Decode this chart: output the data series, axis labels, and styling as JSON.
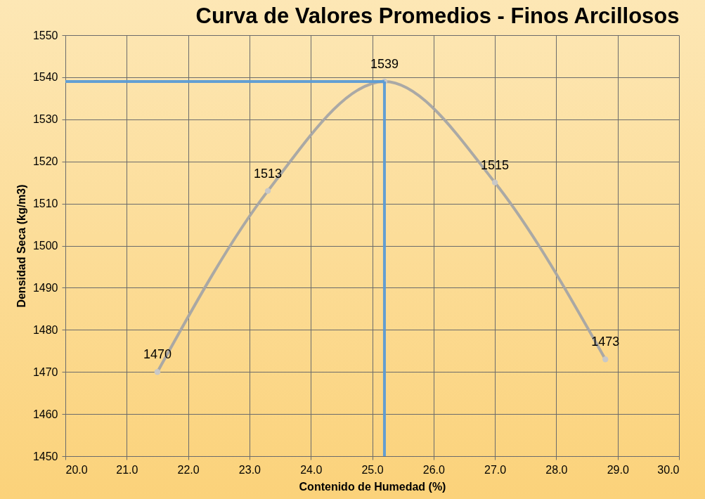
{
  "chart_data": {
    "type": "line",
    "title": "Curva de Valores Promedios - Finos Arcillosos",
    "xlabel": "Contenido de Humedad (%)",
    "ylabel": "Densidad Seca (kg/m3)",
    "x": [
      21.5,
      23.3,
      25.2,
      27.0,
      28.8
    ],
    "series": [
      {
        "color": "#a5a5a5",
        "values": [
          1470,
          1513,
          1539,
          1515,
          1473
        ],
        "marker": "circle",
        "data_labels": true
      }
    ],
    "ref_lines": [
      {
        "axis": "x",
        "value": 25.2,
        "color": "#5b9bd5"
      },
      {
        "axis": "y",
        "value": 1539,
        "color": "#5b9bd5"
      }
    ],
    "xlim": [
      20,
      30
    ],
    "xticks": [
      {
        "value": 20,
        "label": "20.0"
      },
      {
        "value": 21,
        "label": "21.0"
      },
      {
        "value": 22,
        "label": "22.0"
      },
      {
        "value": 23,
        "label": "23.0"
      },
      {
        "value": 24,
        "label": "24.0"
      },
      {
        "value": 25,
        "label": "25.0"
      },
      {
        "value": 26,
        "label": "26.0"
      },
      {
        "value": 27,
        "label": "27.0"
      },
      {
        "value": 28,
        "label": "28.0"
      },
      {
        "value": 29,
        "label": "29.0"
      },
      {
        "value": 30,
        "label": "30.0"
      }
    ],
    "ylim": [
      1450,
      1550
    ],
    "yticks": [
      1450,
      1460,
      1470,
      1480,
      1490,
      1500,
      1510,
      1520,
      1530,
      1540,
      1550
    ],
    "grid": true
  }
}
